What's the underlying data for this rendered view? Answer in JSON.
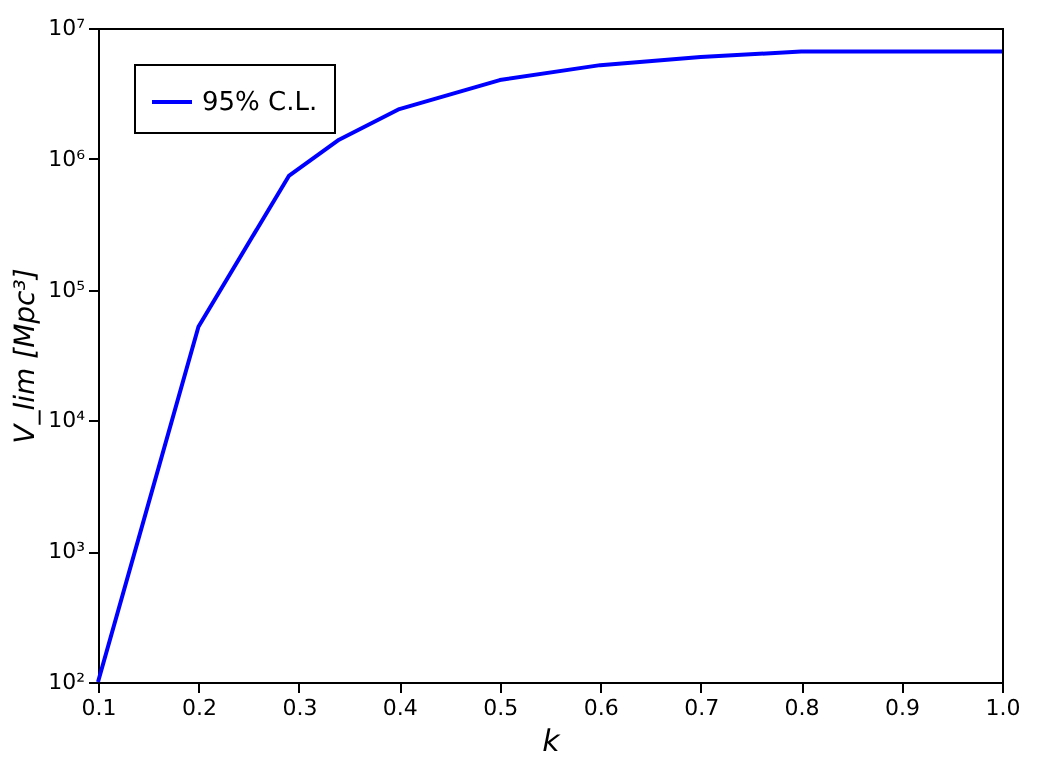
{
  "chart_data": {
    "type": "line",
    "xlabel": "k",
    "ylabel": "V_lim [Mpc³]",
    "x": [
      0.1,
      0.2,
      0.29,
      0.34,
      0.4,
      0.5,
      0.6,
      0.7,
      0.8,
      1.0
    ],
    "series": [
      {
        "name": "95% C.L.",
        "color": "#0000ff",
        "values": [
          100,
          52000,
          740000,
          1400000,
          2400000,
          4000000,
          5200000,
          6000000,
          6600000,
          6600000
        ]
      }
    ],
    "xlim": [
      0.1,
      1.0
    ],
    "xticks": [
      0.1,
      0.2,
      0.3,
      0.4,
      0.5,
      0.6,
      0.7,
      0.8,
      0.9,
      {
        "value": 1.0,
        "label": "1.0"
      }
    ],
    "ylim": [
      100,
      10000000
    ],
    "yticks": [
      {
        "value": 100,
        "label": "10²"
      },
      {
        "value": 1000,
        "label": "10³"
      },
      {
        "value": 10000,
        "label": "10⁴"
      },
      {
        "value": 100000,
        "label": "10⁵"
      },
      {
        "value": 1000000,
        "label": "10⁶"
      },
      {
        "value": 10000000,
        "label": "10⁷"
      }
    ],
    "log": "y",
    "grid": false,
    "legend": "top left",
    "marker": "none",
    "line_style": "solid"
  }
}
